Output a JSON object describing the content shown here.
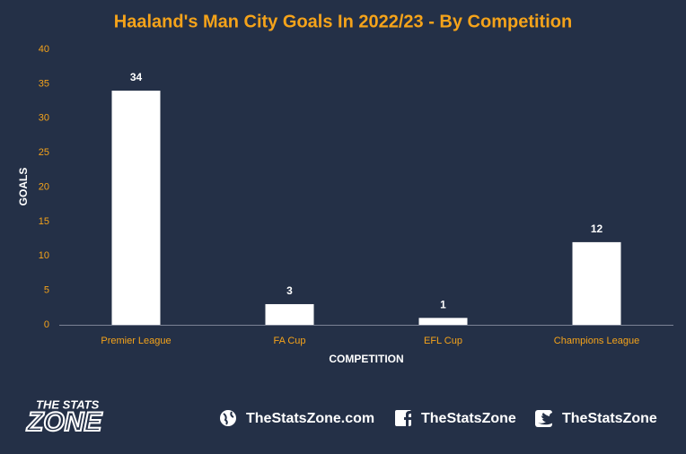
{
  "chart_data": {
    "type": "bar",
    "title": "Haaland's Man City Goals In 2022/23 - By Competition",
    "x_label": "COMPETITION",
    "y_label": "GOALS",
    "categories": [
      "Premier League",
      "FA Cup",
      "EFL Cup",
      "Champions League"
    ],
    "values": [
      34,
      3,
      1,
      12
    ],
    "color": "#ffffff",
    "ylim": [
      0,
      40
    ],
    "yticks": [
      0,
      5,
      10,
      15,
      20,
      25,
      30,
      35,
      40
    ],
    "grid": false
  },
  "footer": {
    "logo_top": "THE STATS",
    "logo_bottom": "ZONE",
    "links": [
      "TheStatsZone.com",
      "TheStatsZone",
      "TheStatsZone"
    ]
  }
}
